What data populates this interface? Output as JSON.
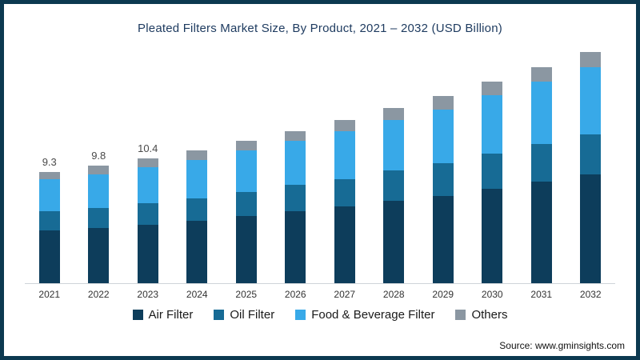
{
  "title": "Pleated Filters Market Size, By Product, 2021 – 2032 (USD Billion)",
  "source_text": "Source: www.gminsights.com",
  "frame_color": "#0c3950",
  "chart_data": {
    "type": "bar",
    "stacked": true,
    "title": "Pleated Filters Market Size, By Product, 2021 – 2032 (USD Billion)",
    "xlabel": "",
    "ylabel": "USD Billion",
    "ylim": [
      0,
      20
    ],
    "grid": false,
    "legend_position": "bottom",
    "categories": [
      "2021",
      "2022",
      "2023",
      "2024",
      "2025",
      "2026",
      "2027",
      "2028",
      "2029",
      "2030",
      "2031",
      "2032"
    ],
    "bar_labels": [
      "9.3",
      "9.8",
      "10.4",
      "",
      "",
      "",
      "",
      "",
      "",
      "",
      "",
      ""
    ],
    "totals": [
      9.3,
      9.8,
      10.4,
      11.1,
      11.9,
      12.7,
      13.6,
      14.6,
      15.6,
      16.8,
      18.0,
      19.3
    ],
    "series": [
      {
        "name": "Air Filter",
        "color": "#0d3d5b",
        "values": [
          4.4,
          4.6,
          4.9,
          5.2,
          5.6,
          6.0,
          6.4,
          6.9,
          7.3,
          7.9,
          8.5,
          9.1
        ]
      },
      {
        "name": "Oil Filter",
        "color": "#176b95",
        "values": [
          1.6,
          1.7,
          1.8,
          1.9,
          2.0,
          2.2,
          2.3,
          2.5,
          2.7,
          2.9,
          3.1,
          3.3
        ]
      },
      {
        "name": "Food & Beverage Filter",
        "color": "#38a9e8",
        "values": [
          2.7,
          2.8,
          3.0,
          3.2,
          3.5,
          3.7,
          4.0,
          4.2,
          4.5,
          4.9,
          5.2,
          5.6
        ]
      },
      {
        "name": "Others",
        "color": "#8b97a2",
        "values": [
          0.6,
          0.7,
          0.7,
          0.8,
          0.8,
          0.8,
          0.9,
          1.0,
          1.1,
          1.1,
          1.2,
          1.3
        ]
      }
    ]
  }
}
